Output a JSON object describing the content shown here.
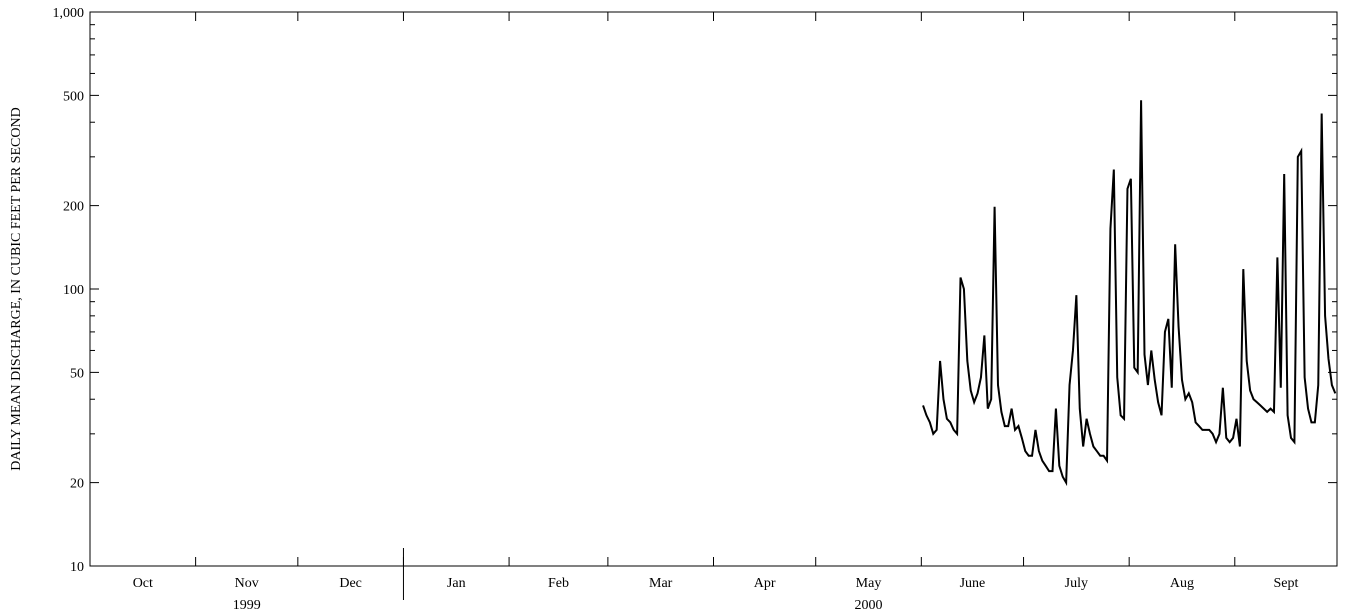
{
  "chart_data": {
    "type": "line",
    "ylabel": "DAILY MEAN DISCHARGE, IN CUBIC FEET PER SECOND",
    "y_scale": "log",
    "ylim": [
      10,
      1000
    ],
    "y_ticks": [
      {
        "value": 10,
        "label": "10"
      },
      {
        "value": 20,
        "label": "20"
      },
      {
        "value": 50,
        "label": "50"
      },
      {
        "value": 100,
        "label": "100"
      },
      {
        "value": 200,
        "label": "200"
      },
      {
        "value": 500,
        "label": "500"
      },
      {
        "value": 1000,
        "label": "1,000"
      }
    ],
    "months": [
      "Oct",
      "Nov",
      "Dec",
      "Jan",
      "Feb",
      "Mar",
      "Apr",
      "May",
      "June",
      "July",
      "Aug",
      "Sept"
    ],
    "year_labels": [
      {
        "label": "1999",
        "month": "Nov"
      },
      {
        "label": "2000",
        "month": "May"
      }
    ],
    "grid": false,
    "line_color": "#000000",
    "series": [
      {
        "x_start": "2000-06-01",
        "x_step_days": 1,
        "values": [
          38,
          35,
          33,
          30,
          31,
          55,
          40,
          34,
          33,
          31,
          30,
          110,
          100,
          55,
          43,
          39,
          42,
          48,
          68,
          37,
          40,
          198,
          45,
          36,
          32,
          32,
          37,
          31,
          32,
          29,
          26,
          25,
          25,
          31,
          26,
          24,
          23,
          22,
          22,
          37,
          23,
          21,
          20,
          45,
          60,
          95,
          37,
          27,
          34,
          30,
          27,
          26,
          25,
          25,
          24,
          165,
          270,
          48,
          35,
          34,
          230,
          250,
          52,
          50,
          480,
          58,
          45,
          60,
          47,
          39,
          35,
          70,
          78,
          44,
          145,
          73,
          47,
          40,
          42,
          39,
          33,
          32,
          31,
          31,
          31,
          30,
          28,
          30,
          44,
          29,
          28,
          29,
          34,
          27,
          118,
          55,
          43,
          40,
          39,
          38,
          37,
          36,
          37,
          36,
          130,
          44,
          260,
          35,
          29,
          28,
          300,
          315,
          48,
          37,
          33,
          33,
          45,
          430,
          80,
          56,
          45,
          42
        ]
      }
    ]
  }
}
